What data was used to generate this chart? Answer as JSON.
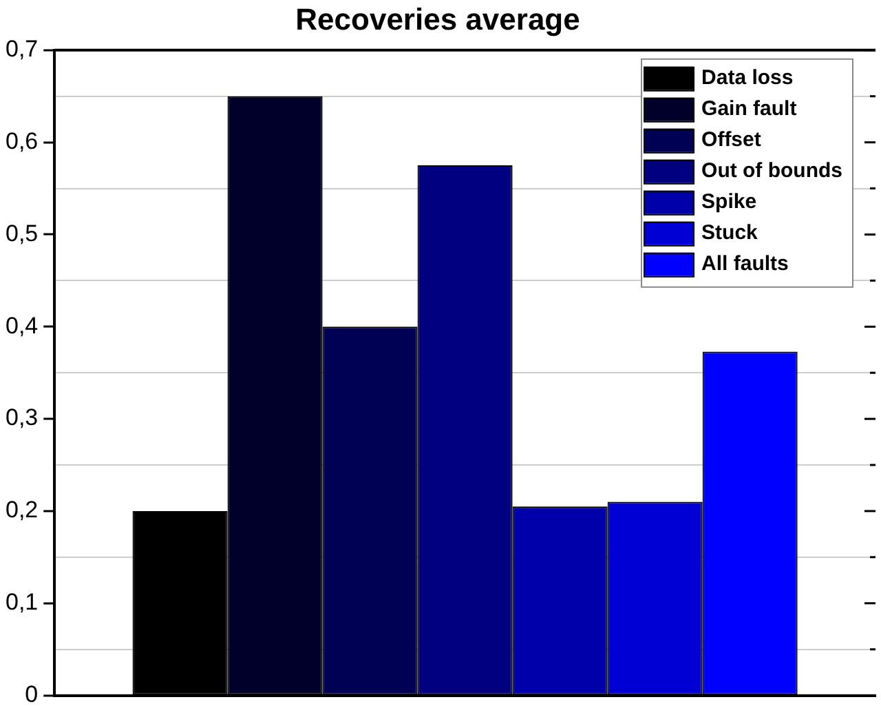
{
  "chart_data": {
    "type": "bar",
    "title": "Recoveries average",
    "categories": [
      null
    ],
    "series": [
      {
        "name": "Data loss",
        "color": "#000000",
        "values": [
          0.2
        ]
      },
      {
        "name": "Gain fault",
        "color": "#00002b",
        "values": [
          0.65
        ]
      },
      {
        "name": "Offset",
        "color": "#000055",
        "values": [
          0.4
        ]
      },
      {
        "name": "Out of bounds",
        "color": "#000080",
        "values": [
          0.575
        ]
      },
      {
        "name": "Spike",
        "color": "#0000aa",
        "values": [
          0.205
        ]
      },
      {
        "name": "Stuck",
        "color": "#0000d5",
        "values": [
          0.21
        ]
      },
      {
        "name": "All faults",
        "color": "#0000ff",
        "values": [
          0.373
        ]
      }
    ],
    "ylim": [
      0,
      0.7
    ],
    "yticks": [
      0,
      {
        "value": 0.05,
        "label": null
      },
      {
        "value": 0.1,
        "label": "0,1"
      },
      {
        "value": 0.15,
        "label": null
      },
      {
        "value": 0.2,
        "label": "0,2"
      },
      {
        "value": 0.25,
        "label": null
      },
      {
        "value": 0.3,
        "label": "0,3"
      },
      {
        "value": 0.35,
        "label": null
      },
      {
        "value": 0.4,
        "label": "0,4"
      },
      {
        "value": 0.45,
        "label": null
      },
      {
        "value": 0.5,
        "label": "0,5"
      },
      {
        "value": 0.55,
        "label": null
      },
      {
        "value": 0.6,
        "label": "0,6"
      },
      {
        "value": 0.65,
        "label": null
      },
      {
        "value": 0.7,
        "label": "0,7"
      }
    ],
    "grid": "y",
    "legend": "top right"
  }
}
